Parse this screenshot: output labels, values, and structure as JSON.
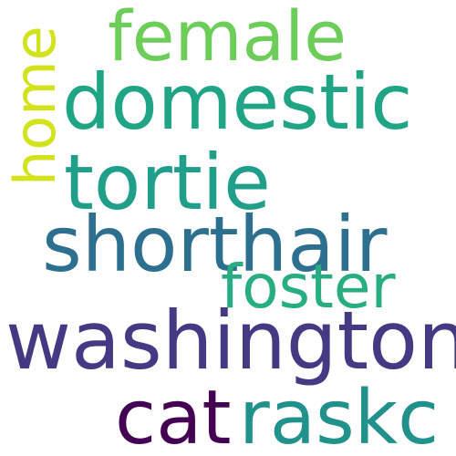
{
  "words": [
    {
      "key": "female",
      "text": "female",
      "color": "#6cce59"
    },
    {
      "key": "domestic",
      "text": "domestic",
      "color": "#20a486"
    },
    {
      "key": "home",
      "text": "home",
      "color": "#d2e21b"
    },
    {
      "key": "tortie",
      "text": "tortie",
      "color": "#1f9e89"
    },
    {
      "key": "shorthair",
      "text": "shorthair",
      "color": "#2d6f8e"
    },
    {
      "key": "foster",
      "text": "foster",
      "color": "#27ad81"
    },
    {
      "key": "washington",
      "text": "washington",
      "color": "#443983"
    },
    {
      "key": "cat",
      "text": "cat",
      "color": "#440154"
    },
    {
      "key": "raskc",
      "text": "raskc",
      "color": "#21918c"
    }
  ]
}
